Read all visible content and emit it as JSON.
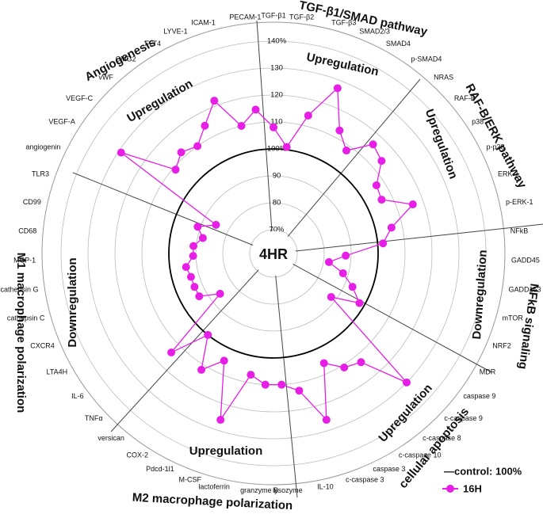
{
  "chart_data": {
    "type": "radar",
    "center_label": "4HR",
    "legend_control": "—control: 100%",
    "control_value": 100,
    "categories": [
      "TGF-β1",
      "TGF-β2",
      "TGF-β3",
      "SMAD2/3",
      "SMAD4",
      "p-SMAD4",
      "NRAS",
      "RAF-B",
      "p38",
      "p-p38",
      "ERK-1",
      "p-ERK-1",
      "NFkB",
      "GADD45",
      "GADD153",
      "mTOR",
      "NRF2",
      "MDR",
      "caspase 9",
      "c-caspase 9",
      "c-caspase 8",
      "c-caspase 10",
      "caspase 3",
      "c-caspase 3",
      "IL-10",
      "lysozyme",
      "granzyme B",
      "lactoferrin",
      "M-CSF",
      "Pdcd-1l1",
      "COX-2",
      "versican",
      "TNFα",
      "IL-6",
      "LTA4H",
      "CXCR4",
      "cathepsin C",
      "cathepsin G",
      "MCP-1",
      "CD68",
      "CD99",
      "TLR3",
      "angiogenin",
      "VEGF-A",
      "VEGF-C",
      "vWF",
      "CMG2",
      "FLT4",
      "LYVE-1",
      "ICAM-1",
      "PECAM-1"
    ],
    "series": [
      {
        "name": "16H",
        "color": "#e61ee6",
        "values": [
          108,
          101,
          114,
          127,
          113,
          108,
          116,
          114,
          107,
          106,
          116,
          106,
          102,
          88,
          82,
          88,
          93,
          98,
          88,
          130,
          113,
          111,
          106,
          126,
          113,
          110,
          110,
          107,
          126,
          105,
          112,
          100,
          114,
          86,
          93,
          93,
          93,
          94,
          91,
          91,
          88,
          91,
          85,
          129,
          109,
          112,
          110,
          115,
          122,
          110,
          115
        ]
      }
    ],
    "ylim": [
      70,
      140
    ],
    "yticks": [
      {
        "value": 70,
        "label": "70%"
      },
      80,
      90,
      {
        "value": 100,
        "label": "100%"
      },
      110,
      120,
      130,
      {
        "value": 140,
        "label": "140%"
      }
    ],
    "grid": true,
    "groups": [
      {
        "title": "TGF-β1/SMAD pathway",
        "regulation": "Upregulation",
        "regulation_color": "#e8161a"
      },
      {
        "title": "RAF-B/ERK pathway",
        "regulation": "Upregulation",
        "regulation_color": "#e8161a"
      },
      {
        "title": "NFkB signaling",
        "regulation": "Downregulation",
        "regulation_color": "#1f7fd8"
      },
      {
        "title": "cellular apoptosis",
        "regulation": "Upregulation",
        "regulation_color": "#e8161a"
      },
      {
        "title": "M2 macrophage polarization",
        "regulation": "Upregulation",
        "regulation_color": "#e8161a"
      },
      {
        "title": "M1 macrophage polarization",
        "regulation": "Downregulation",
        "regulation_color": "#1f7fd8"
      },
      {
        "title": "Angiogenesis",
        "regulation": "Upregulation",
        "regulation_color": "#e8161a"
      }
    ]
  }
}
